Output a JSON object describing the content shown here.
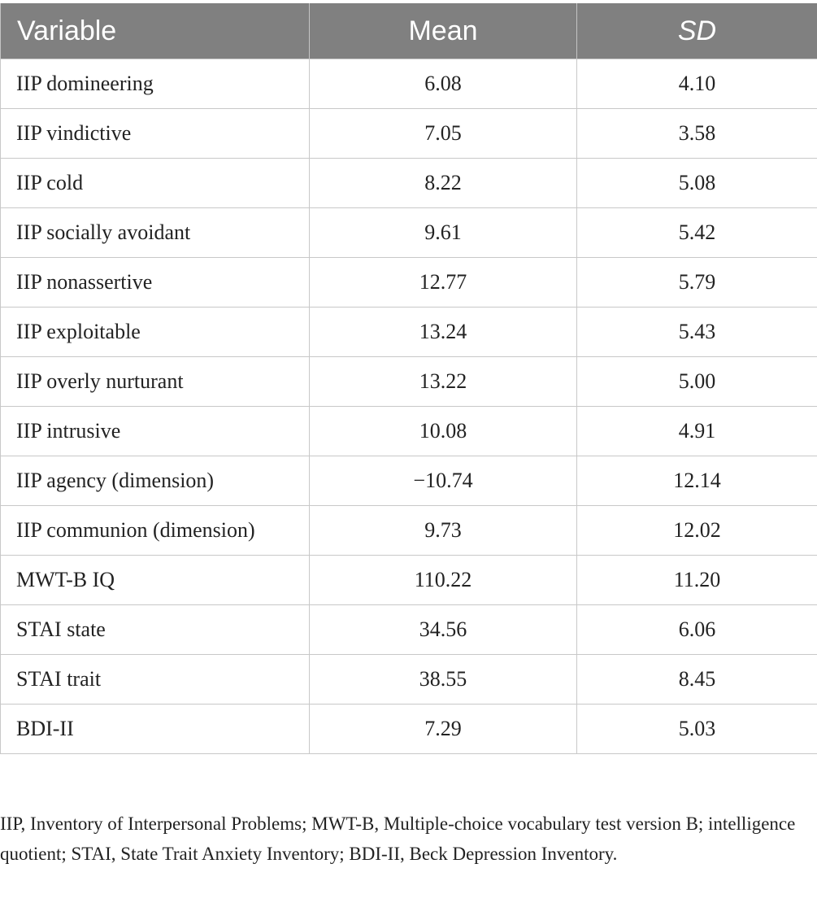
{
  "table": {
    "headers": {
      "variable": "Variable",
      "mean": "Mean",
      "sd": "SD"
    },
    "rows": [
      {
        "variable": "IIP domineering",
        "mean": "6.08",
        "sd": "4.10"
      },
      {
        "variable": "IIP vindictive",
        "mean": "7.05",
        "sd": "3.58"
      },
      {
        "variable": "IIP cold",
        "mean": "8.22",
        "sd": "5.08"
      },
      {
        "variable": "IIP socially avoidant",
        "mean": "9.61",
        "sd": "5.42"
      },
      {
        "variable": "IIP nonassertive",
        "mean": "12.77",
        "sd": "5.79"
      },
      {
        "variable": "IIP exploitable",
        "mean": "13.24",
        "sd": "5.43"
      },
      {
        "variable": "IIP overly nurturant",
        "mean": "13.22",
        "sd": "5.00"
      },
      {
        "variable": "IIP intrusive",
        "mean": "10.08",
        "sd": "4.91"
      },
      {
        "variable": "IIP agency (dimension)",
        "mean": "−10.74",
        "sd": "12.14"
      },
      {
        "variable": "IIP communion (dimension)",
        "mean": "9.73",
        "sd": "12.02"
      },
      {
        "variable": "MWT-B IQ",
        "mean": "110.22",
        "sd": "11.20"
      },
      {
        "variable": "STAI state",
        "mean": "34.56",
        "sd": "6.06"
      },
      {
        "variable": "STAI trait",
        "mean": "38.55",
        "sd": "8.45"
      },
      {
        "variable": "BDI-II",
        "mean": "7.29",
        "sd": "5.03"
      }
    ]
  },
  "footnote": "IIP, Inventory of Interpersonal Problems; MWT-B, Multiple-choice vocabulary test version B; intelligence quotient; STAI, State Trait Anxiety Inventory; BDI-II, Beck Depression Inventory."
}
